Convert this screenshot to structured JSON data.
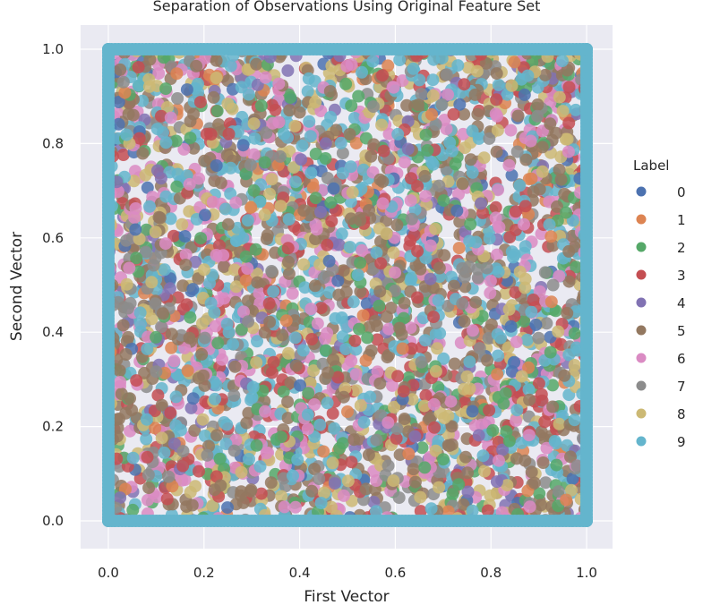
{
  "chart_data": {
    "type": "scatter",
    "title": "Separation of Observations Using Original Feature Set",
    "xlabel": "First Vector",
    "ylabel": "Second Vector",
    "xlim": [
      -0.06,
      1.06
    ],
    "ylim": [
      -0.06,
      1.06
    ],
    "x_ticks": [
      "0.0",
      "0.2",
      "0.4",
      "0.6",
      "0.8",
      "1.0"
    ],
    "y_ticks": [
      "0.0",
      "0.2",
      "0.4",
      "0.6",
      "0.8",
      "1.0"
    ],
    "grid": true,
    "legend_title": "Label",
    "legend_position": "right",
    "series": [
      {
        "name": "0",
        "color": "#4c72b0"
      },
      {
        "name": "1",
        "color": "#dd8452"
      },
      {
        "name": "2",
        "color": "#55a868"
      },
      {
        "name": "3",
        "color": "#c44e52"
      },
      {
        "name": "4",
        "color": "#8172b3"
      },
      {
        "name": "5",
        "color": "#937860"
      },
      {
        "name": "6",
        "color": "#da8bc3"
      },
      {
        "name": "7",
        "color": "#8c8c8c"
      },
      {
        "name": "8",
        "color": "#ccb974"
      },
      {
        "name": "9",
        "color": "#64b5cd"
      }
    ],
    "point_distribution": "Dense overlapping points uniformly covering the unit square [0,1] x [0,1] for all ten labels; the edges x=0, x=1, y=0, y=1 are heavily populated and drawn on top by label 9."
  }
}
